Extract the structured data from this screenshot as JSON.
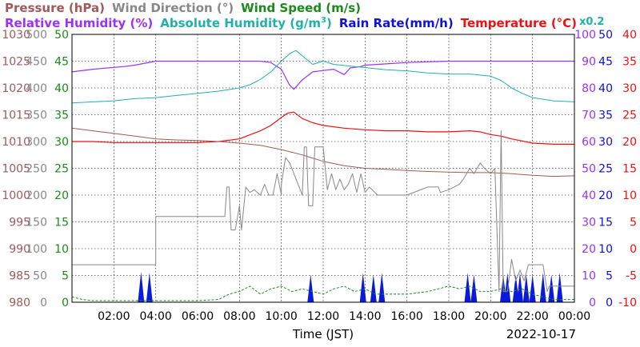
{
  "header": {
    "line1": [
      {
        "text": "Pressure (hPa)",
        "color": "#a05a5a"
      },
      {
        "text": "Wind Direction (°)",
        "color": "#888888"
      },
      {
        "text": "Wind Speed (m/s)",
        "color": "#1a8a1a"
      }
    ],
    "line2": [
      {
        "text": "Relative Humidity (%)",
        "color": "#9b30ff"
      },
      {
        "text": "Absolute Humidity (g/m",
        "color": "#20b2aa",
        "sup": "3",
        "tail": ")"
      },
      {
        "text": "Rain Rate(mm/h)",
        "color": "#1010dd"
      },
      {
        "text": "Temperature (°C)",
        "color": "#ee1111"
      }
    ],
    "x02": "x0.2"
  },
  "footer": {
    "xlabel": "Time (JST)",
    "date": "2022-10-17"
  },
  "chart_data": {
    "type": "line",
    "x_unit": "hours",
    "xlim": [
      0,
      24
    ],
    "x_ticks": [
      "02:00",
      "04:00",
      "06:00",
      "08:00",
      "10:00",
      "12:00",
      "14:00",
      "16:00",
      "18:00",
      "20:00",
      "22:00",
      "00:00"
    ],
    "left_axes": [
      {
        "name": "Pressure (hPa)",
        "color": "#a05a5a",
        "ticks": [
          "980",
          "985",
          "990",
          "995",
          "1000",
          "1005",
          "1010",
          "1015",
          "1020",
          "1025",
          "1030"
        ]
      },
      {
        "name": "Wind Direction (°)",
        "color": "#888888",
        "ticks": [
          "0",
          "50",
          "100",
          "150",
          "200",
          "250",
          "300",
          "350",
          "400",
          "450",
          "500"
        ]
      },
      {
        "name": "Wind Speed (m/s)",
        "color": "#1a8a1a",
        "ticks": [
          "0",
          "5",
          "10",
          "15",
          "20",
          "25",
          "30",
          "35",
          "40",
          "45",
          "50"
        ]
      }
    ],
    "right_axes": [
      {
        "name": "Relative Humidity (%)",
        "color": "#9b30ff",
        "ticks": [
          "0",
          "10",
          "20",
          "30",
          "40",
          "50",
          "60",
          "70",
          "80",
          "90",
          "100"
        ]
      },
      {
        "name": "Rain Rate(mm/h) / Absolute Humidity x0.2",
        "color": "#1010dd",
        "ticks": [
          "0",
          "5",
          "10",
          "15",
          "20",
          "25",
          "30",
          "35",
          "40",
          "45",
          "50"
        ]
      },
      {
        "name": "Temperature (°C)",
        "color": "#ee1111",
        "ticks": [
          "-10",
          "-5",
          "0",
          "5",
          "10",
          "15",
          "20",
          "25",
          "30",
          "35",
          "40"
        ]
      }
    ],
    "series": [
      {
        "name": "Relative Humidity (%)",
        "color": "#9b30ff",
        "scale": [
          0,
          100
        ],
        "width": 1.2,
        "points": [
          [
            0,
            86
          ],
          [
            1,
            87
          ],
          [
            2.5,
            88
          ],
          [
            3,
            88.5
          ],
          [
            4,
            90
          ],
          [
            5,
            90
          ],
          [
            6,
            90
          ],
          [
            8,
            90
          ],
          [
            9,
            90
          ],
          [
            9.5,
            89.5
          ],
          [
            10,
            87
          ],
          [
            10.4,
            81
          ],
          [
            10.6,
            79.5
          ],
          [
            11,
            83
          ],
          [
            11.5,
            86
          ],
          [
            12,
            86.5
          ],
          [
            12.5,
            87
          ],
          [
            13,
            85
          ],
          [
            13.3,
            87.5
          ],
          [
            13.8,
            88
          ],
          [
            14,
            88.5
          ],
          [
            15,
            89
          ],
          [
            16,
            89.5
          ],
          [
            18,
            90
          ],
          [
            20,
            90
          ],
          [
            22,
            90
          ],
          [
            24,
            90
          ]
        ]
      },
      {
        "name": "Absolute Humidity (g/m3)",
        "color": "#20b2aa",
        "scale": [
          0,
          250
        ],
        "width": 1,
        "points": [
          [
            0,
            186
          ],
          [
            1,
            187
          ],
          [
            2,
            188
          ],
          [
            3,
            190
          ],
          [
            4,
            191
          ],
          [
            5,
            193
          ],
          [
            6,
            195
          ],
          [
            7,
            197
          ],
          [
            8,
            200
          ],
          [
            8.5,
            203
          ],
          [
            9,
            208
          ],
          [
            9.5,
            215
          ],
          [
            10,
            225
          ],
          [
            10.4,
            232
          ],
          [
            10.7,
            235
          ],
          [
            11,
            230
          ],
          [
            11.5,
            222
          ],
          [
            12,
            225
          ],
          [
            12.5,
            222
          ],
          [
            13,
            221
          ],
          [
            13.5,
            220
          ],
          [
            14,
            219
          ],
          [
            15,
            217
          ],
          [
            16,
            216
          ],
          [
            17,
            214
          ],
          [
            18,
            213
          ],
          [
            19,
            213
          ],
          [
            20,
            211
          ],
          [
            20.5,
            207
          ],
          [
            21,
            200
          ],
          [
            21.5,
            195
          ],
          [
            22,
            191
          ],
          [
            23,
            188
          ],
          [
            24,
            187
          ]
        ]
      },
      {
        "name": "Temperature (°C)",
        "color": "#ee1111",
        "scale": [
          -10,
          40
        ],
        "width": 1.2,
        "points": [
          [
            0,
            20
          ],
          [
            1,
            20
          ],
          [
            2,
            19.8
          ],
          [
            3,
            19.8
          ],
          [
            4,
            19.8
          ],
          [
            5,
            19.8
          ],
          [
            6,
            19.8
          ],
          [
            7,
            20
          ],
          [
            8,
            20.5
          ],
          [
            9,
            22
          ],
          [
            9.5,
            23
          ],
          [
            10,
            24.5
          ],
          [
            10.3,
            25.3
          ],
          [
            10.6,
            25.5
          ],
          [
            11,
            24.3
          ],
          [
            11.5,
            23.5
          ],
          [
            12,
            23
          ],
          [
            13,
            22.5
          ],
          [
            14,
            22.2
          ],
          [
            15,
            22
          ],
          [
            16,
            22
          ],
          [
            17,
            21.8
          ],
          [
            18,
            21.8
          ],
          [
            19,
            22
          ],
          [
            19.5,
            21.8
          ],
          [
            20,
            21.3
          ],
          [
            20.5,
            21
          ],
          [
            21,
            20.5
          ],
          [
            22,
            19.7
          ],
          [
            23,
            19.5
          ],
          [
            24,
            19.5
          ]
        ]
      },
      {
        "name": "Pressure (hPa)",
        "color": "#a05a5a",
        "scale": [
          980,
          1030
        ],
        "width": 1,
        "points": [
          [
            0,
            1012.5
          ],
          [
            1,
            1012
          ],
          [
            2,
            1011.5
          ],
          [
            3,
            1011
          ],
          [
            4,
            1010.5
          ],
          [
            5,
            1010.3
          ],
          [
            6,
            1010.2
          ],
          [
            7,
            1010
          ],
          [
            8,
            1009.7
          ],
          [
            9,
            1009.3
          ],
          [
            10,
            1008.5
          ],
          [
            11,
            1007.5
          ],
          [
            12,
            1006.3
          ],
          [
            13,
            1005.5
          ],
          [
            14,
            1005
          ],
          [
            15,
            1004.8
          ],
          [
            16,
            1004.6
          ],
          [
            17,
            1004.4
          ],
          [
            18,
            1004.3
          ],
          [
            19,
            1004.2
          ],
          [
            20,
            1004.2
          ],
          [
            21,
            1004
          ],
          [
            22,
            1003.7
          ],
          [
            23,
            1003.5
          ],
          [
            24,
            1003.6
          ]
        ]
      },
      {
        "name": "Wind Direction (°)",
        "color": "#888888",
        "scale": [
          0,
          500
        ],
        "width": 1,
        "points": [
          [
            0,
            70
          ],
          [
            0.2,
            70
          ],
          [
            3.9,
            70
          ],
          [
            4,
            70
          ],
          [
            4,
            160
          ],
          [
            7.3,
            160
          ],
          [
            7.4,
            215
          ],
          [
            7.5,
            215
          ],
          [
            7.6,
            135
          ],
          [
            7.8,
            135
          ],
          [
            8,
            180
          ],
          [
            8.1,
            135
          ],
          [
            8.3,
            215
          ],
          [
            8.5,
            205
          ],
          [
            8.7,
            210
          ],
          [
            9,
            200
          ],
          [
            9.2,
            220
          ],
          [
            9.4,
            200
          ],
          [
            9.6,
            200
          ],
          [
            9.8,
            240
          ],
          [
            10,
            200
          ],
          [
            10,
            220
          ],
          [
            10.2,
            270
          ],
          [
            10.4,
            260
          ],
          [
            10.6,
            240
          ],
          [
            10.8,
            220
          ],
          [
            11,
            200
          ],
          [
            11.1,
            290
          ],
          [
            11.2,
            290
          ],
          [
            11.3,
            180
          ],
          [
            11.5,
            180
          ],
          [
            11.6,
            290
          ],
          [
            12,
            290
          ],
          [
            12.2,
            210
          ],
          [
            12.4,
            240
          ],
          [
            12.6,
            210
          ],
          [
            12.8,
            230
          ],
          [
            13,
            210
          ],
          [
            13.2,
            220
          ],
          [
            13.4,
            240
          ],
          [
            13.6,
            205
          ],
          [
            13.8,
            240
          ],
          [
            14,
            205
          ],
          [
            14.2,
            215
          ],
          [
            14.6,
            200
          ],
          [
            15,
            200
          ],
          [
            16,
            200
          ],
          [
            17,
            215
          ],
          [
            17.5,
            215
          ],
          [
            17.6,
            205
          ],
          [
            18,
            210
          ],
          [
            18.5,
            220
          ],
          [
            18.7,
            230
          ],
          [
            19,
            250
          ],
          [
            19.2,
            240
          ],
          [
            19.5,
            260
          ],
          [
            19.7,
            250
          ],
          [
            20,
            240
          ],
          [
            20.2,
            250
          ],
          [
            20.4,
            20
          ],
          [
            20.5,
            320
          ],
          [
            20.6,
            20
          ],
          [
            20.8,
            20
          ],
          [
            21,
            80
          ],
          [
            21.2,
            40
          ],
          [
            21.4,
            60
          ],
          [
            21.6,
            40
          ],
          [
            21.8,
            70
          ],
          [
            22,
            70
          ],
          [
            22.5,
            70
          ],
          [
            22.7,
            20
          ],
          [
            22.8,
            30
          ],
          [
            23,
            30
          ],
          [
            24,
            30
          ]
        ]
      }
    ],
    "wind_speed_series": {
      "name": "Wind Speed (m/s)",
      "color": "#1a8a1a",
      "scale": [
        0,
        50
      ],
      "style": "dashed",
      "points": [
        [
          0,
          1
        ],
        [
          0.5,
          0.5
        ],
        [
          1,
          0.3
        ],
        [
          2,
          0.3
        ],
        [
          3,
          0.3
        ],
        [
          4,
          0.3
        ],
        [
          5,
          0.3
        ],
        [
          6,
          0.3
        ],
        [
          7,
          0.5
        ],
        [
          7.5,
          1.5
        ],
        [
          8,
          2
        ],
        [
          8.5,
          3
        ],
        [
          9,
          1.5
        ],
        [
          9.5,
          2.5
        ],
        [
          10,
          3
        ],
        [
          10.5,
          2
        ],
        [
          11,
          2.5
        ],
        [
          11.5,
          2
        ],
        [
          12,
          1.5
        ],
        [
          12.5,
          2.5
        ],
        [
          13,
          3
        ],
        [
          13.5,
          2
        ],
        [
          14,
          2.5
        ],
        [
          14.5,
          1.5
        ],
        [
          15,
          1.5
        ],
        [
          16,
          1.5
        ],
        [
          17,
          2
        ],
        [
          17.5,
          2.5
        ],
        [
          18,
          3
        ],
        [
          18.5,
          2.5
        ],
        [
          19,
          3
        ],
        [
          19.5,
          2
        ],
        [
          20,
          2
        ],
        [
          20.5,
          2.5
        ],
        [
          21,
          2
        ],
        [
          21.5,
          2.5
        ],
        [
          22,
          1.5
        ],
        [
          22.5,
          1
        ],
        [
          23,
          0.5
        ],
        [
          24,
          0.5
        ]
      ]
    },
    "rain_rate_events": {
      "name": "Rain Rate(mm/h)",
      "color": "#0a1adc",
      "scale": [
        0,
        50
      ],
      "peaks": [
        [
          3.3,
          3
        ],
        [
          3.7,
          2.8
        ],
        [
          11.4,
          2.5
        ],
        [
          13.9,
          2.8
        ],
        [
          14.4,
          2.5
        ],
        [
          14.8,
          2.8
        ],
        [
          18.9,
          2.8
        ],
        [
          19.2,
          2.5
        ],
        [
          20.6,
          2.5
        ],
        [
          20.8,
          2.8
        ],
        [
          21.2,
          2.5
        ],
        [
          21.4,
          2.8
        ],
        [
          21.7,
          2.5
        ],
        [
          22,
          2.5
        ],
        [
          22.5,
          2.8
        ],
        [
          22.9,
          2.5
        ],
        [
          23.3,
          2.8
        ]
      ]
    }
  }
}
